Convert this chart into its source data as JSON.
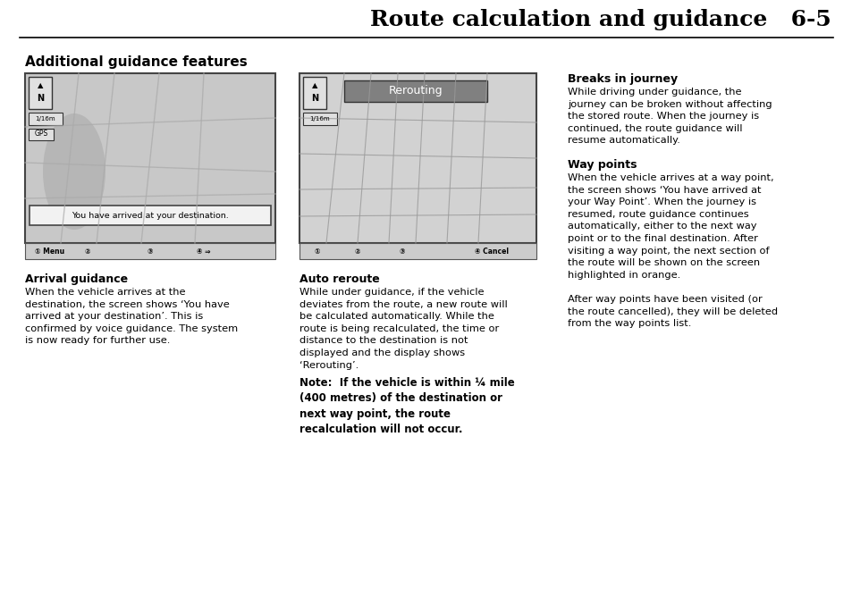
{
  "page_title": "Route calculation and guidance   6-5",
  "section_title": "Additional guidance features",
  "bg_color": "#ffffff",
  "title_font_size": 18,
  "section_font_size": 11,
  "body_font_size": 8.2,
  "bold_font_size": 9.0,
  "note_font_size": 8.5,
  "heading_left": "Arrival guidance",
  "body_left": "When the vehicle arrives at the\ndestination, the screen shows ‘You have\narrived at your destination’. This is\nconfirmed by voice guidance. The system\nis now ready for further use.",
  "heading_mid": "Auto reroute",
  "body_mid": "While under guidance, if the vehicle\ndeviates from the route, a new route will\nbe calculated automatically. While the\nroute is being recalculated, the time or\ndistance to the destination is not\ndisplayed and the display shows\n‘Rerouting’.",
  "note_mid": "Note:  If the vehicle is within ¼ mile\n(400 metres) of the destination or\nnext way point, the route\nrecalculation will not occur.",
  "heading_right1": "Breaks in journey",
  "body_right1": "While driving under guidance, the\njourney can be broken without affecting\nthe stored route. When the journey is\ncontinued, the route guidance will\nresume automatically.",
  "heading_right2": "Way points",
  "body_right2": "When the vehicle arrives at a way point,\nthe screen shows ‘You have arrived at\nyour Way Point’. When the journey is\nresumed, route guidance continues\nautomatically, either to the next way\npoint or to the final destination. After\nvisiting a way point, the next section of\nthe route will be shown on the screen\nhighlighted in orange.\n\nAfter way points have been visited (or\nthe route cancelled), they will be deleted\nfrom the way points list.",
  "map1_msg": "You have arrived at your destination.",
  "map2_label": "Rerouting",
  "menu1_items": [
    "① Menu",
    "②",
    "③",
    "④ ⇒"
  ],
  "menu2_items": [
    "①",
    "②",
    "③",
    "④ Cancel"
  ]
}
